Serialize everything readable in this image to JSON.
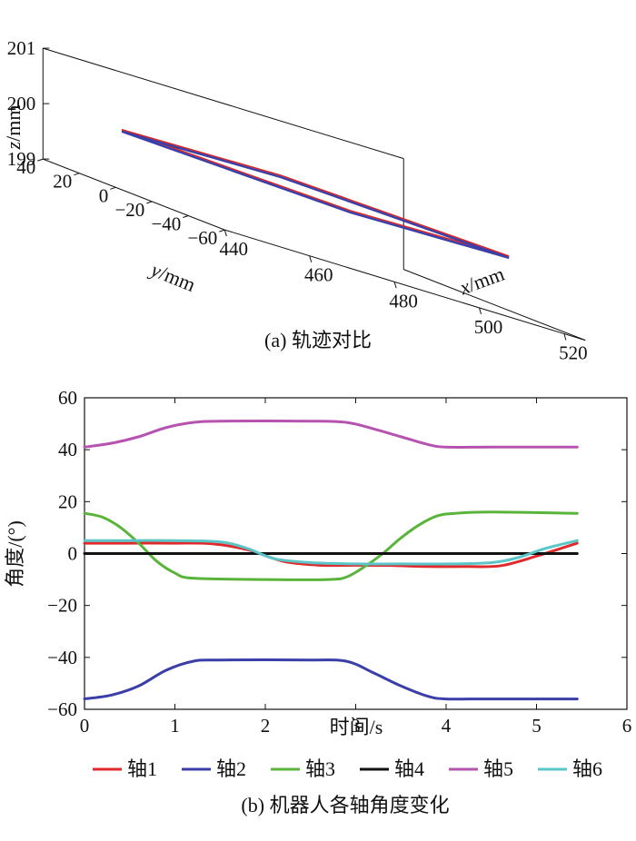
{
  "chart_data": [
    {
      "type": "line",
      "projection": "3d",
      "caption": "(a) 轨迹对比",
      "xlabel_italic": "x",
      "xlabel_unit": "/mm",
      "ylabel_italic": "y",
      "ylabel_unit": "/mm",
      "zlabel_italic": "z",
      "zlabel_unit": "/mm",
      "xticks": [
        "440",
        "460",
        "480",
        "500",
        "520"
      ],
      "yticks": [
        "40",
        "20",
        "0",
        "−20",
        "−40",
        "−60"
      ],
      "zticks": [
        "199",
        "200",
        "201"
      ],
      "xlim": [
        440,
        525
      ],
      "ylim": [
        -60,
        40
      ],
      "zlim": [
        199,
        201
      ],
      "series": [
        {
          "color": "#d62728",
          "points": [
            [
              450,
              20,
              200
            ],
            [
              473,
              -52,
              200
            ],
            [
              519,
              -32,
              200
            ],
            [
              496,
              40,
              200
            ],
            [
              450,
              20,
              200
            ]
          ]
        },
        {
          "color": "#3a3ea8",
          "points": [
            [
              450,
              20,
              200
            ],
            [
              473,
              -52,
              200
            ],
            [
              519,
              -32,
              200
            ],
            [
              496,
              40,
              200
            ],
            [
              450,
              20,
              200
            ]
          ]
        }
      ]
    },
    {
      "type": "line",
      "caption": "(b) 机器人各轴角度变化",
      "xlabel": "时间/s",
      "ylabel": "角度/(°)",
      "xlim": [
        0,
        6
      ],
      "ylim": [
        -60,
        60
      ],
      "xticks": [
        "0",
        "1",
        "2",
        "3",
        "4",
        "5",
        "6"
      ],
      "yticks": [
        "−60",
        "−40",
        "−20",
        "0",
        "20",
        "40",
        "60"
      ],
      "legend_position": "bottom",
      "series": [
        {
          "name": "轴1",
          "color": "#e0292b",
          "x": [
            0,
            0.5,
            1.0,
            1.4,
            1.8,
            2.2,
            2.6,
            3.0,
            3.4,
            3.8,
            4.2,
            4.6,
            5.0,
            5.45
          ],
          "values": [
            4,
            4,
            4,
            3.8,
            1.5,
            -3,
            -4.5,
            -4.5,
            -4.6,
            -5,
            -5,
            -4.7,
            -1,
            4
          ]
        },
        {
          "name": "轴2",
          "color": "#3a3ea8",
          "x": [
            0,
            0.3,
            0.6,
            0.9,
            1.2,
            1.5,
            2.5,
            2.9,
            3.2,
            3.5,
            3.8,
            4.0,
            4.5,
            5.45
          ],
          "values": [
            -56,
            -54.5,
            -51,
            -45,
            -41.5,
            -41,
            -41,
            -41.5,
            -46,
            -51,
            -55,
            -56,
            -56,
            -56
          ]
        },
        {
          "name": "轴3",
          "color": "#5ab43a",
          "x": [
            0,
            0.2,
            0.4,
            0.6,
            0.8,
            1.0,
            1.2,
            2.0,
            2.7,
            2.9,
            3.1,
            3.3,
            3.5,
            3.7,
            3.9,
            4.1,
            4.5,
            5.45
          ],
          "values": [
            15.5,
            14,
            10,
            4,
            -3,
            -7.5,
            -9.5,
            -10,
            -10,
            -9,
            -5,
            0,
            6,
            11,
            14.5,
            15.5,
            16,
            15.5
          ]
        },
        {
          "name": "轴4",
          "color": "#111111",
          "x": [
            0,
            5.45
          ],
          "values": [
            0,
            0
          ]
        },
        {
          "name": "轴5",
          "color": "#b652b0",
          "x": [
            0,
            0.3,
            0.6,
            0.9,
            1.2,
            1.5,
            2.5,
            2.9,
            3.2,
            3.5,
            3.8,
            4.0,
            4.5,
            5.45
          ],
          "values": [
            41,
            42.5,
            45,
            48.5,
            50.5,
            51,
            51,
            50.5,
            48,
            45,
            42,
            41,
            41,
            41
          ]
        },
        {
          "name": "轴6",
          "color": "#5bc5c8",
          "x": [
            0,
            0.5,
            1.0,
            1.5,
            1.8,
            2.1,
            2.5,
            3.0,
            3.5,
            4.0,
            4.5,
            4.8,
            5.1,
            5.45
          ],
          "values": [
            5,
            5,
            5,
            4.5,
            2,
            -2,
            -3.5,
            -4,
            -4,
            -4,
            -3.5,
            -1.5,
            2,
            5
          ]
        }
      ]
    }
  ]
}
